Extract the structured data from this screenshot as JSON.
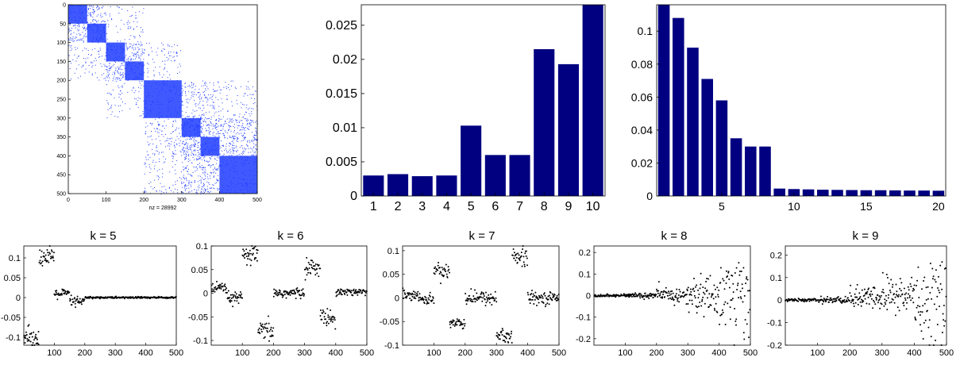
{
  "colors": {
    "spy": "#1f3cff",
    "bar": "#000080",
    "dot": "#000000",
    "axis": "#000000"
  },
  "spy": {
    "xticks": [
      0,
      100,
      200,
      300,
      400,
      500
    ],
    "yticks": [
      0,
      50,
      100,
      150,
      200,
      250,
      300,
      350,
      400,
      450,
      500
    ],
    "xlabel": "nz = 28992",
    "xlim": [
      0,
      500
    ],
    "ylim": [
      0,
      500
    ]
  },
  "chart_data": [
    {
      "type": "heatmap",
      "description_of_pattern": "sparsity pattern with dense diagonal blocks",
      "size": [
        500,
        500
      ],
      "nnz_label": "nz = 28992"
    },
    {
      "type": "bar",
      "categories": [
        "1",
        "2",
        "3",
        "4",
        "5",
        "6",
        "7",
        "8",
        "9",
        "10"
      ],
      "values": [
        0.003,
        0.0032,
        0.0029,
        0.003,
        0.0103,
        0.006,
        0.006,
        0.0215,
        0.0193,
        0.0282
      ],
      "ylim": [
        0,
        0.028
      ],
      "yticks": [
        "0",
        "0.005",
        "0.01",
        "0.015",
        "0.02",
        "0.025"
      ]
    },
    {
      "type": "bar",
      "categories": [
        "1",
        "2",
        "3",
        "4",
        "5",
        "6",
        "7",
        "8",
        "9",
        "10",
        "11",
        "12",
        "13",
        "14",
        "15",
        "16",
        "17",
        "18",
        "19",
        "20"
      ],
      "values": [
        0.116,
        0.108,
        0.09,
        0.071,
        0.058,
        0.035,
        0.03,
        0.03,
        0.0045,
        0.0042,
        0.004,
        0.0038,
        0.0037,
        0.0036,
        0.0035,
        0.0035,
        0.0034,
        0.0033,
        0.0033,
        0.0032
      ],
      "xlim": [
        0.5,
        20.5
      ],
      "ylim": [
        0,
        0.116
      ],
      "xticks": [
        "5",
        "10",
        "15",
        "20"
      ],
      "yticks": [
        "0",
        "0.02",
        "0.04",
        "0.06",
        "0.08",
        "0.1"
      ]
    },
    {
      "type": "scatter",
      "title": "k = 5",
      "xlim": [
        0,
        500
      ],
      "ylim": [
        -0.12,
        0.13
      ],
      "xticks": [
        "100",
        "200",
        "300",
        "400",
        "500"
      ],
      "yticks": [
        "-0.1",
        "-0.05",
        "0",
        "0.05",
        "0.1"
      ],
      "clusters": [
        {
          "x": [
            0,
            50
          ],
          "y": -0.1,
          "spread": 0.012
        },
        {
          "x": [
            50,
            100
          ],
          "y": 0.1,
          "spread": 0.012
        },
        {
          "x": [
            100,
            150
          ],
          "y": 0.01,
          "spread": 0.006
        },
        {
          "x": [
            150,
            200
          ],
          "y": -0.01,
          "spread": 0.007
        },
        {
          "x": [
            200,
            500
          ],
          "y": 0.0,
          "spread": 0.0012
        }
      ]
    },
    {
      "type": "scatter",
      "title": "k = 6",
      "xlim": [
        0,
        500
      ],
      "ylim": [
        -0.11,
        0.1
      ],
      "xticks": [
        "100",
        "200",
        "300",
        "400",
        "500"
      ],
      "yticks": [
        "-0.1",
        "-0.05",
        "0",
        "0.05",
        "0.1"
      ],
      "clusters": [
        {
          "x": [
            0,
            50
          ],
          "y": 0.01,
          "spread": 0.006
        },
        {
          "x": [
            50,
            100
          ],
          "y": -0.01,
          "spread": 0.006
        },
        {
          "x": [
            100,
            150
          ],
          "y": 0.08,
          "spread": 0.01
        },
        {
          "x": [
            150,
            200
          ],
          "y": -0.08,
          "spread": 0.01
        },
        {
          "x": [
            200,
            300
          ],
          "y": 0.0,
          "spread": 0.006
        },
        {
          "x": [
            300,
            350
          ],
          "y": 0.055,
          "spread": 0.008
        },
        {
          "x": [
            350,
            400
          ],
          "y": -0.052,
          "spread": 0.009
        },
        {
          "x": [
            400,
            500
          ],
          "y": 0.003,
          "spread": 0.004
        }
      ]
    },
    {
      "type": "scatter",
      "title": "k = 7",
      "xlim": [
        0,
        500
      ],
      "ylim": [
        -0.1,
        0.11
      ],
      "xticks": [
        "100",
        "200",
        "300",
        "400",
        "500"
      ],
      "yticks": [
        "-0.1",
        "-0.05",
        "0",
        "0.05",
        "0.1"
      ],
      "clusters": [
        {
          "x": [
            0,
            50
          ],
          "y": 0.008,
          "spread": 0.005
        },
        {
          "x": [
            50,
            100
          ],
          "y": -0.003,
          "spread": 0.005
        },
        {
          "x": [
            100,
            150
          ],
          "y": 0.058,
          "spread": 0.008
        },
        {
          "x": [
            150,
            200
          ],
          "y": -0.052,
          "spread": 0.008
        },
        {
          "x": [
            200,
            300
          ],
          "y": 0.0,
          "spread": 0.007
        },
        {
          "x": [
            300,
            350
          ],
          "y": -0.08,
          "spread": 0.01
        },
        {
          "x": [
            350,
            400
          ],
          "y": 0.085,
          "spread": 0.012
        },
        {
          "x": [
            400,
            500
          ],
          "y": 0.0,
          "spread": 0.006
        }
      ]
    },
    {
      "type": "scatter",
      "title": "k = 8",
      "xlim": [
        0,
        500
      ],
      "ylim": [
        -0.23,
        0.23
      ],
      "xticks": [
        "100",
        "200",
        "300",
        "400",
        "500"
      ],
      "yticks": [
        "-0.2",
        "-0.1",
        "0",
        "0.1",
        "0.2"
      ],
      "clusters": [
        {
          "x": [
            0,
            100
          ],
          "y": 0.0,
          "spread": 0.003
        },
        {
          "x": [
            100,
            200
          ],
          "y": 0.0,
          "spread": 0.006
        },
        {
          "x": [
            200,
            300
          ],
          "y": 0.0,
          "spread": 0.018
        },
        {
          "x": [
            300,
            400
          ],
          "y": 0.0,
          "spread": 0.045
        },
        {
          "x": [
            400,
            500
          ],
          "y": 0.0,
          "spread": 0.1
        }
      ]
    },
    {
      "type": "scatter",
      "title": "k = 9",
      "xlim": [
        0,
        500
      ],
      "ylim": [
        -0.2,
        0.24
      ],
      "xticks": [
        "100",
        "200",
        "300",
        "400",
        "500"
      ],
      "yticks": [
        "-0.2",
        "-0.1",
        "0",
        "0.1",
        "0.2"
      ],
      "clusters": [
        {
          "x": [
            0,
            100
          ],
          "y": 0.0,
          "spread": 0.003
        },
        {
          "x": [
            100,
            200
          ],
          "y": 0.0,
          "spread": 0.007
        },
        {
          "x": [
            200,
            300
          ],
          "y": 0.01,
          "spread": 0.025
        },
        {
          "x": [
            300,
            400
          ],
          "y": 0.02,
          "spread": 0.045
        },
        {
          "x": [
            400,
            500
          ],
          "y": 0.0,
          "spread": 0.1
        }
      ]
    }
  ]
}
